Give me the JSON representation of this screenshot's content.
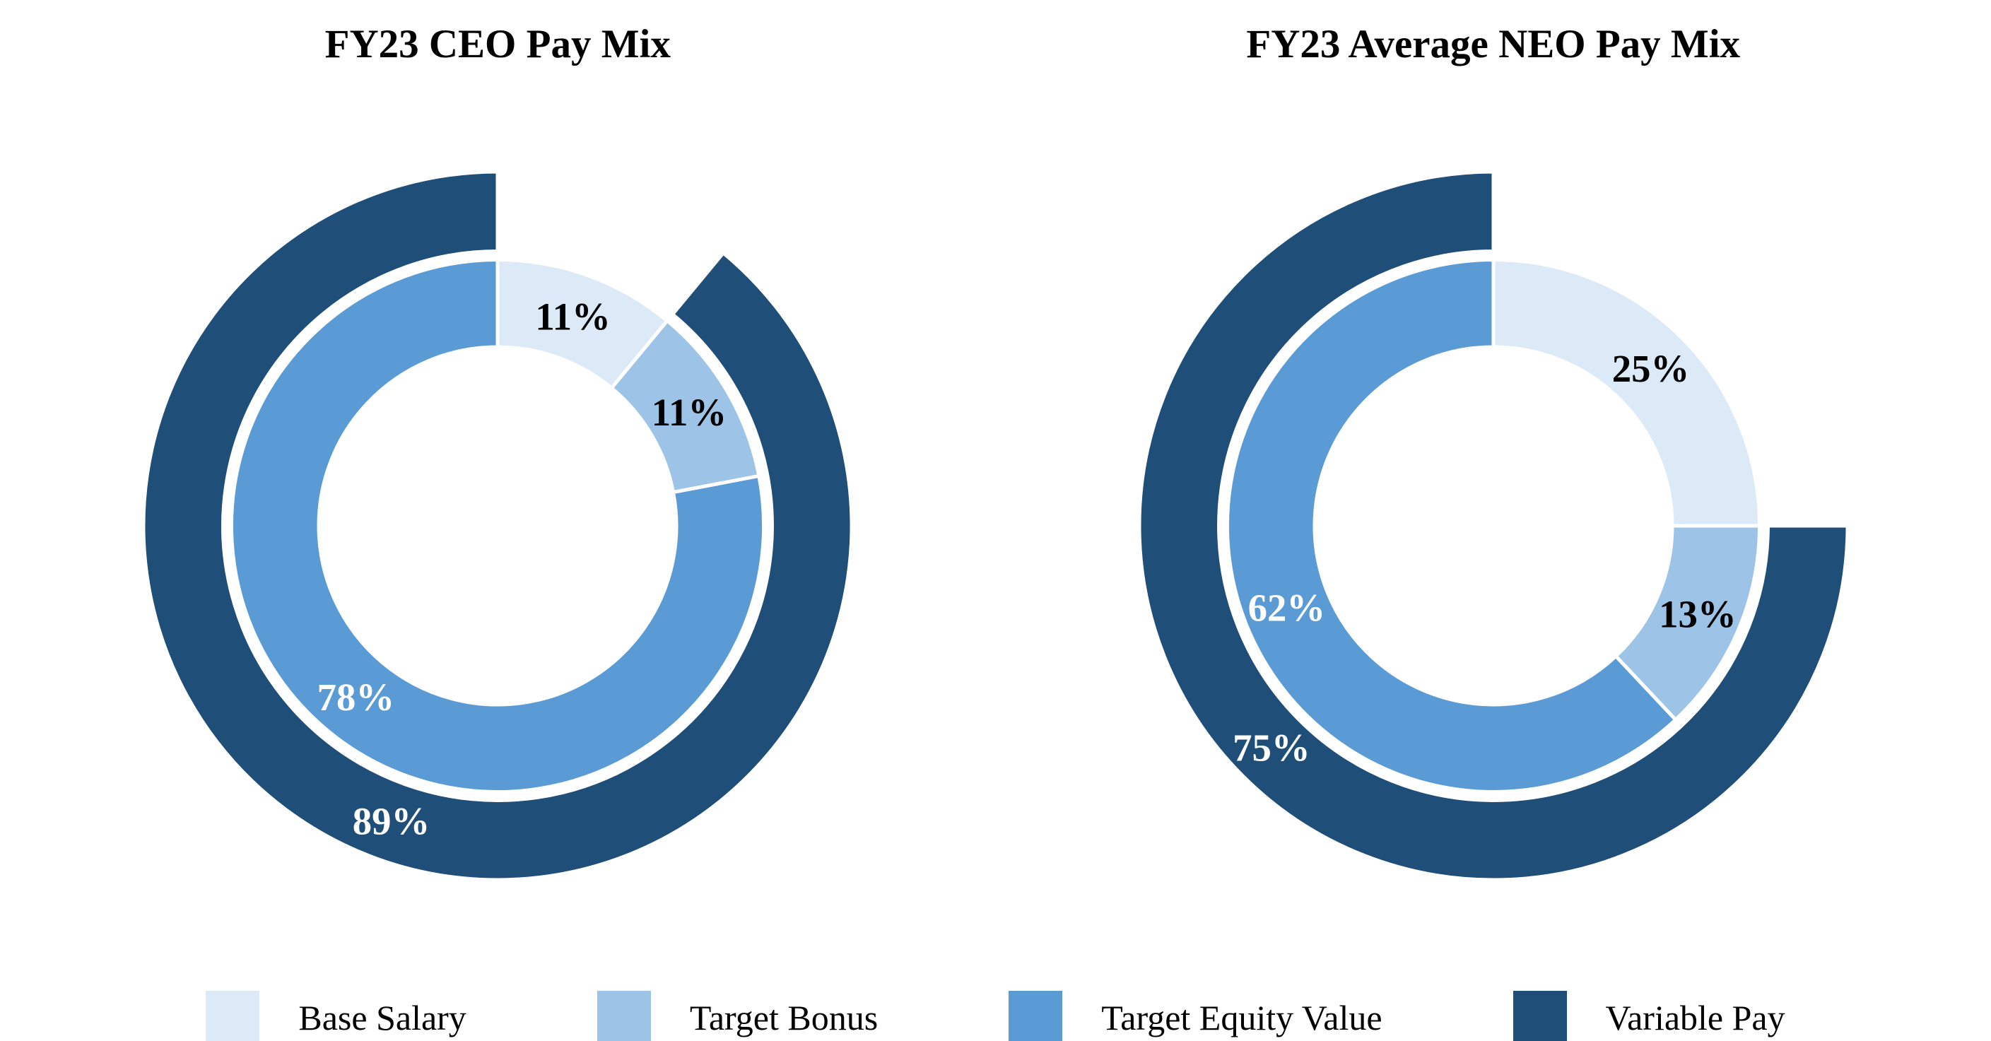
{
  "chart_data": [
    {
      "type": "pie",
      "subtype": "double_donut",
      "title": "FY23 CEO Pay Mix",
      "direction": "clockwise",
      "start_angle": "12-oclock",
      "inner_ring": {
        "slices": [
          {
            "label": "Base Salary",
            "value_pct": 11,
            "display": "11%",
            "color": "#dce9f7",
            "label_color": "#000000"
          },
          {
            "label": "Target Bonus",
            "value_pct": 11,
            "display": "11%",
            "color": "#9dc3e6",
            "label_color": "#000000"
          },
          {
            "label": "Target Equity Value",
            "value_pct": 78,
            "display": "78%",
            "color": "#5b9bd5",
            "label_color": "#ffffff"
          }
        ]
      },
      "outer_ring": {
        "slices": [
          {
            "label": "Variable Pay",
            "value_pct": 89,
            "display": "89%",
            "color": "#1f4e79",
            "label_color": "#ffffff",
            "start_pct": 11
          }
        ]
      }
    },
    {
      "type": "pie",
      "subtype": "double_donut",
      "title": "FY23 Average NEO Pay Mix",
      "direction": "clockwise",
      "start_angle": "12-oclock",
      "inner_ring": {
        "slices": [
          {
            "label": "Base Salary",
            "value_pct": 25,
            "display": "25%",
            "color": "#dce9f7",
            "label_color": "#000000"
          },
          {
            "label": "Target Bonus",
            "value_pct": 13,
            "display": "13%",
            "color": "#9dc3e6",
            "label_color": "#000000"
          },
          {
            "label": "Target Equity Value",
            "value_pct": 62,
            "display": "62%",
            "color": "#5b9bd5",
            "label_color": "#ffffff"
          }
        ]
      },
      "outer_ring": {
        "slices": [
          {
            "label": "Variable Pay",
            "value_pct": 75,
            "display": "75%",
            "color": "#1f4e79",
            "label_color": "#ffffff",
            "start_pct": 25
          }
        ]
      }
    }
  ],
  "legend": {
    "position": "bottom",
    "items": [
      {
        "label": "Base Salary",
        "color": "#dce9f7"
      },
      {
        "label": "Target Bonus",
        "color": "#9dc3e6"
      },
      {
        "label": "Target Equity Value",
        "color": "#5b9bd5"
      },
      {
        "label": "Variable Pay",
        "color": "#1f4e79"
      }
    ]
  }
}
